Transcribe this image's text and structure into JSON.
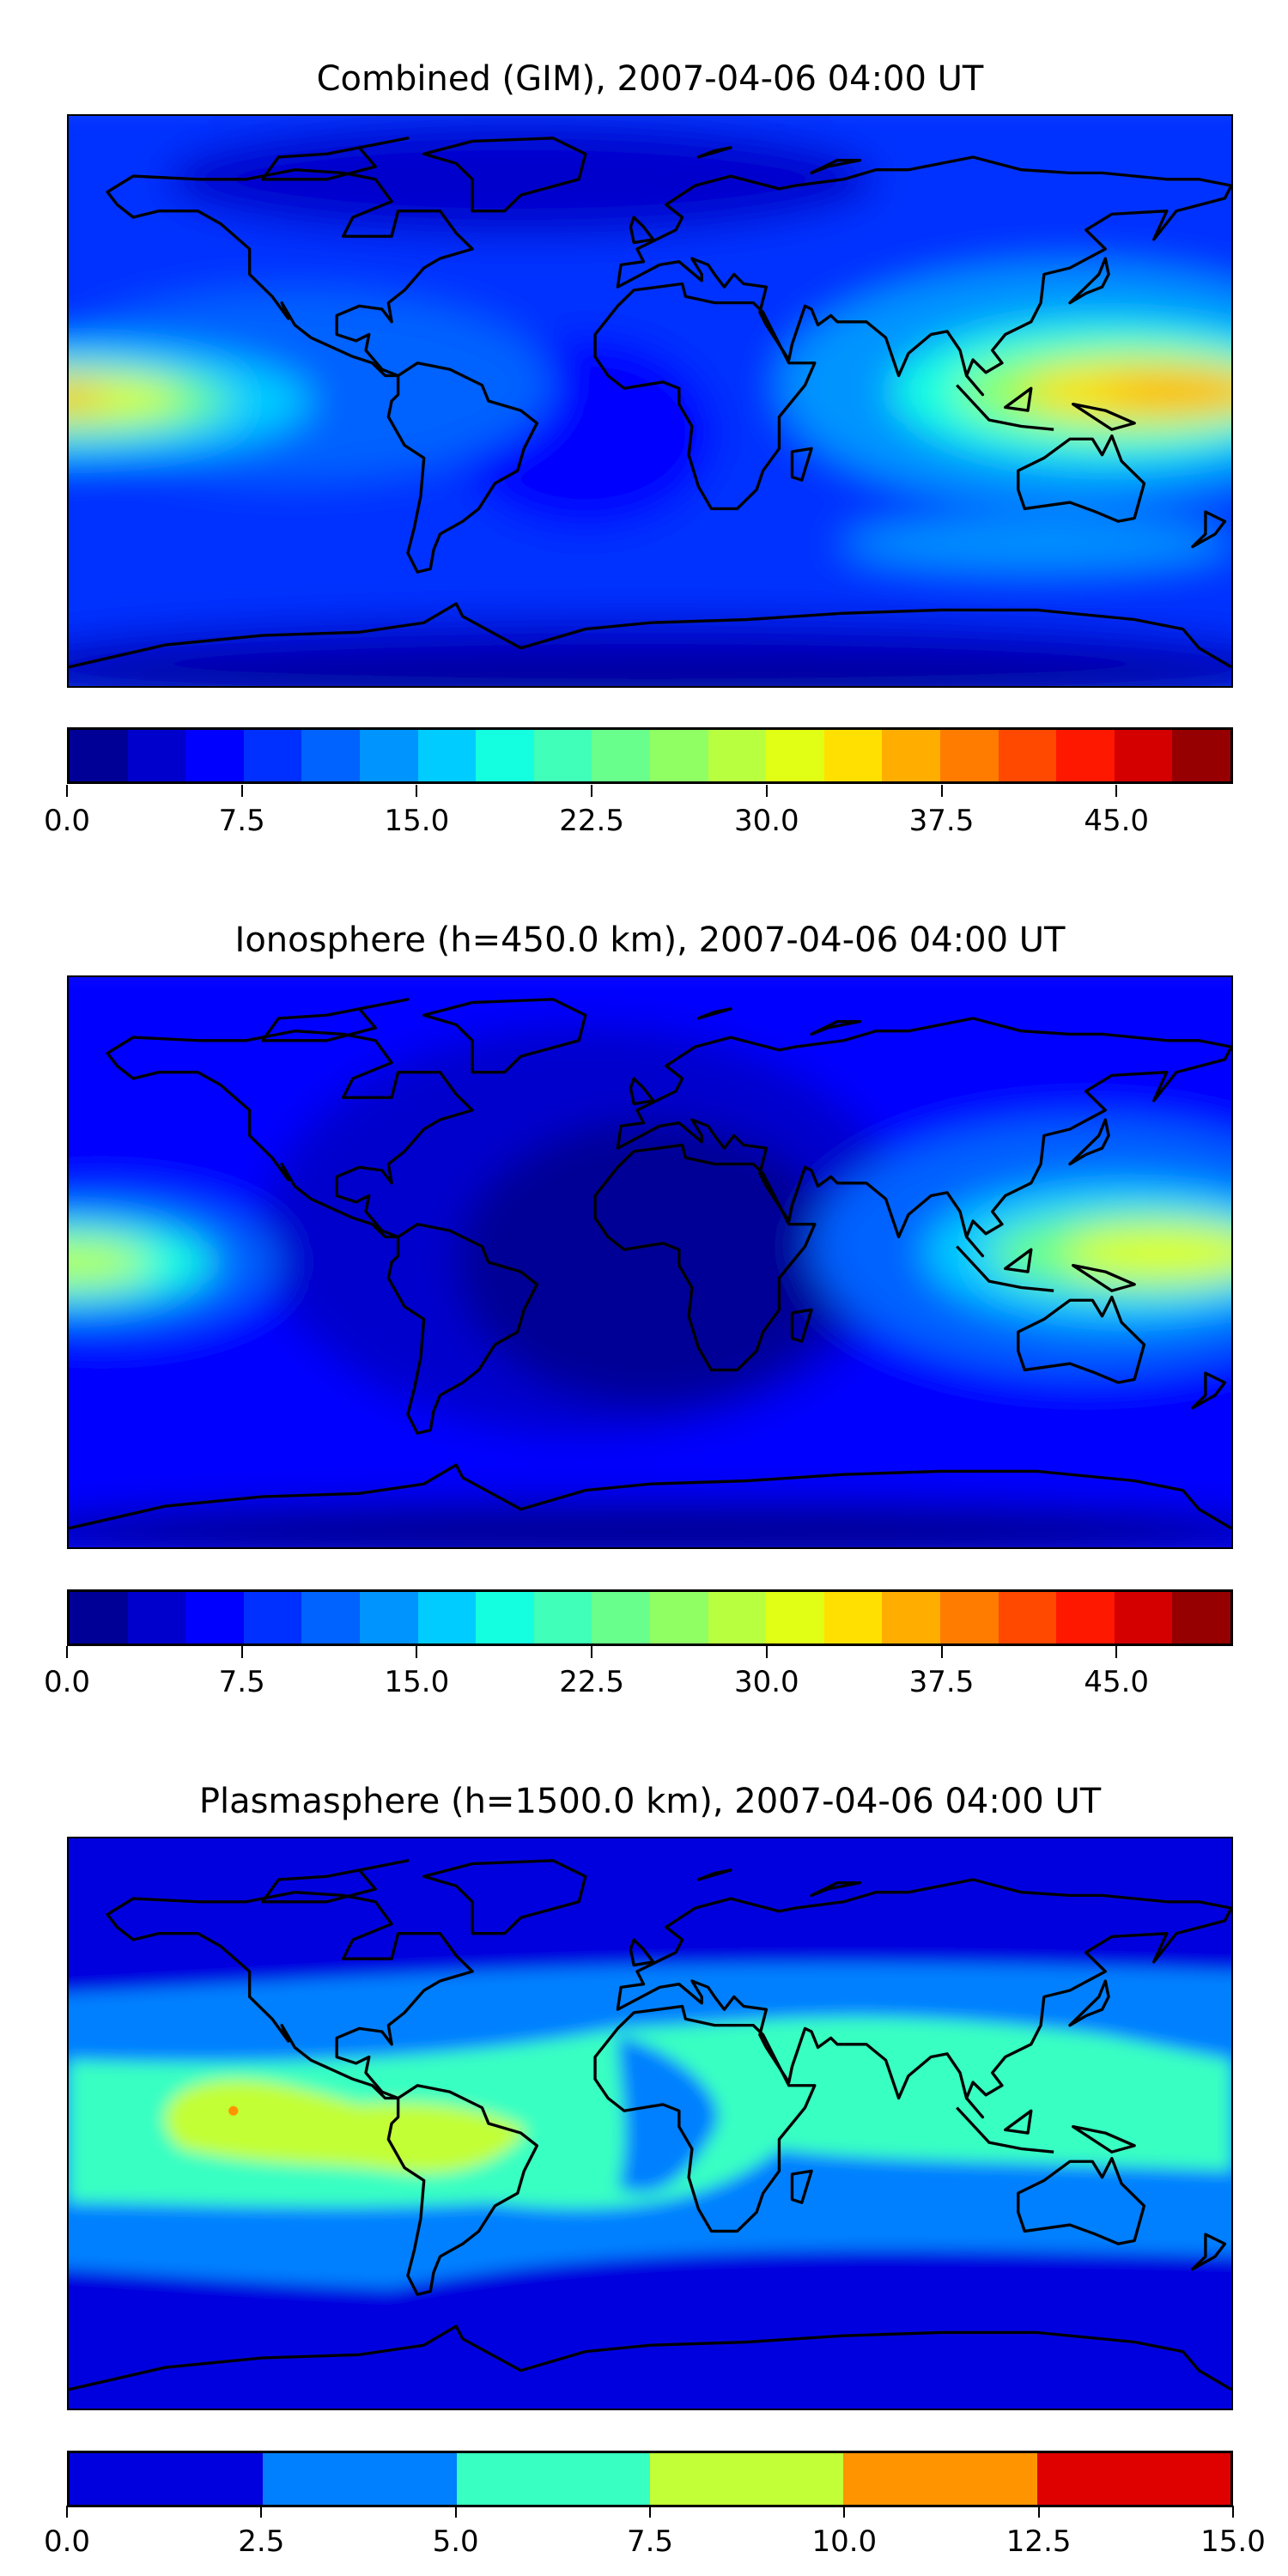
{
  "chart_data": [
    {
      "type": "heatmap",
      "title": "Combined (GIM), 2007-04-06 04:00 UT",
      "projection": "global lon/lat map with coastlines",
      "colorbar": {
        "range": [
          0,
          50
        ],
        "levels_step": 2.5,
        "ticks": [
          "0.0",
          "7.5",
          "15.0",
          "22.5",
          "30.0",
          "37.5",
          "45.0"
        ],
        "tick_values": [
          0,
          7.5,
          15,
          22.5,
          30,
          37.5,
          45
        ],
        "colors": [
          "#000096",
          "#0000cd",
          "#0000ff",
          "#0030ff",
          "#0062ff",
          "#0094ff",
          "#00ccff",
          "#14ffe0",
          "#40ffb8",
          "#68ff8c",
          "#90ff64",
          "#b8ff40",
          "#e0ff14",
          "#ffe000",
          "#ffae00",
          "#ff7c00",
          "#ff4800",
          "#ff1800",
          "#d40000",
          "#960000"
        ]
      },
      "features": [
        {
          "region": "central Pacific equator (lon -180 to -100)",
          "max_value": 37.5
        },
        {
          "region": "East Asia / Western Pacific equator (lon 90 to 180)",
          "max_value": 37.5
        },
        {
          "region": "high latitudes / Antarctica",
          "min_value": 0
        }
      ]
    },
    {
      "type": "heatmap",
      "title": "Ionosphere  (h=450.0 km), 2007-04-06 04:00 UT",
      "colorbar": {
        "range": [
          0,
          50
        ],
        "levels_step": 2.5,
        "ticks": [
          "0.0",
          "7.5",
          "15.0",
          "22.5",
          "30.0",
          "37.5",
          "45.0"
        ],
        "tick_values": [
          0,
          7.5,
          15,
          22.5,
          30,
          37.5,
          45
        ],
        "colors": [
          "#000096",
          "#0000cd",
          "#0000ff",
          "#0030ff",
          "#0062ff",
          "#0094ff",
          "#00ccff",
          "#14ffe0",
          "#40ffb8",
          "#68ff8c",
          "#90ff64",
          "#b8ff40",
          "#e0ff14",
          "#ffe000",
          "#ffae00",
          "#ff7c00",
          "#ff4800",
          "#ff1800",
          "#d40000",
          "#960000"
        ]
      },
      "features": [
        {
          "region": "central Pacific equator",
          "max_value": 32.5
        },
        {
          "region": "East Asia / Western Pacific equator",
          "max_value": 32.5
        },
        {
          "region": "Atlantic / Americas / Africa",
          "min_value": 0
        }
      ]
    },
    {
      "type": "heatmap",
      "title": "Plasmasphere (h=1500.0 km), 2007-04-06 04:00 UT",
      "colorbar": {
        "range": [
          0,
          15
        ],
        "levels_step": 2.5,
        "ticks": [
          "0.0",
          "2.5",
          "5.0",
          "7.5",
          "10.0",
          "12.5",
          "15.0"
        ],
        "tick_values": [
          0,
          2.5,
          5,
          7.5,
          10,
          12.5,
          15
        ],
        "colors": [
          "#0000df",
          "#0080ff",
          "#38ffc2",
          "#c2ff36",
          "#ff9400",
          "#df0000"
        ]
      },
      "features": [
        {
          "region": "Eastern Pacific to South America (lat 10 to -20)",
          "max_value": 10
        },
        {
          "region": "small spot near lon -128, lat 4",
          "max_value": 12.5
        }
      ]
    }
  ]
}
